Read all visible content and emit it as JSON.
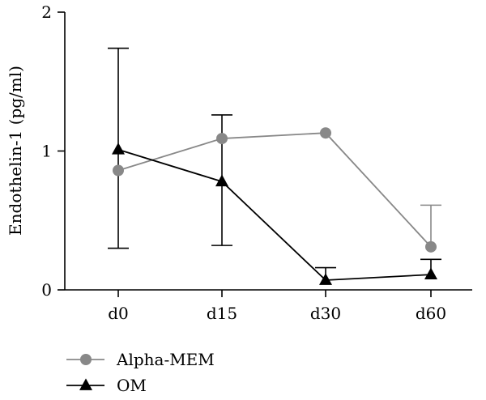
{
  "chart_data": {
    "type": "line",
    "categories": [
      "d0",
      "d15",
      "d30",
      "d60"
    ],
    "ylabel": "Endothelin-1 (pg/ml)",
    "ylim": [
      0,
      2
    ],
    "yticks": [
      "0",
      "1",
      "2"
    ],
    "grid": false,
    "legend_position": "bottom-left",
    "series": [
      {
        "name": "Alpha-MEM",
        "marker": "circle",
        "color": "#888888",
        "values": [
          0.86,
          1.09,
          1.13,
          0.31
        ],
        "error_upper": [
          null,
          null,
          null,
          0.61
        ],
        "error_lower": [
          null,
          null,
          null,
          null
        ]
      },
      {
        "name": "OM",
        "marker": "triangle",
        "color": "#000000",
        "values": [
          1.01,
          0.78,
          0.07,
          0.11
        ],
        "error_upper": [
          1.74,
          1.26,
          0.16,
          0.22
        ],
        "error_lower": [
          0.3,
          0.32,
          null,
          null
        ]
      }
    ]
  }
}
